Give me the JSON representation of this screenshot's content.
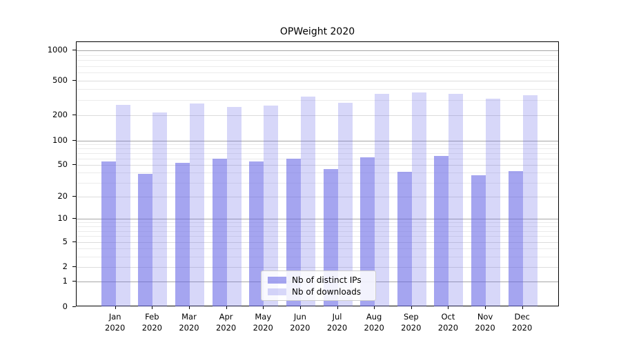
{
  "chart": {
    "title": "OPWeight 2020"
  },
  "chart_data": {
    "type": "bar",
    "title": "OPWeight 2020",
    "categories": [
      "Jan 2020",
      "Feb 2020",
      "Mar 2020",
      "Apr 2020",
      "May 2020",
      "Jun 2020",
      "Jul 2020",
      "Aug 2020",
      "Sep 2020",
      "Oct 2020",
      "Nov 2020",
      "Dec 2020"
    ],
    "month_labels": [
      "Jan",
      "Feb",
      "Mar",
      "Apr",
      "May",
      "Jun",
      "Jul",
      "Aug",
      "Sep",
      "Oct",
      "Nov",
      "Dec"
    ],
    "year_label": "2020",
    "series": [
      {
        "name": "Nb of distinct IPs",
        "color": "rgba(100,100,230,0.58)",
        "values": [
          55,
          39,
          53,
          60,
          55,
          60,
          44,
          62,
          41,
          64,
          37,
          42
        ]
      },
      {
        "name": "Nb of downloads",
        "color": "rgba(100,100,230,0.26)",
        "values": [
          265,
          215,
          273,
          248,
          257,
          327,
          277,
          353,
          368,
          355,
          312,
          342
        ]
      }
    ],
    "y_axis": {
      "scale": "symlog",
      "ticks": [
        0,
        1,
        2,
        5,
        10,
        20,
        50,
        100,
        200,
        500,
        1000
      ],
      "range": [
        0,
        1000
      ]
    },
    "x_axis": {
      "tick_label_line1": [
        "Jan",
        "Feb",
        "Mar",
        "Apr",
        "May",
        "Jun",
        "Jul",
        "Aug",
        "Sep",
        "Oct",
        "Nov",
        "Dec"
      ],
      "tick_label_line2": "2020"
    },
    "legend": {
      "position": "inside-bottom-center",
      "entries": [
        "Nb of distinct IPs",
        "Nb of downloads"
      ]
    },
    "grid": "on",
    "grid_major_color": "#a5a5a5",
    "grid_minor_color": "#ebebeb"
  }
}
